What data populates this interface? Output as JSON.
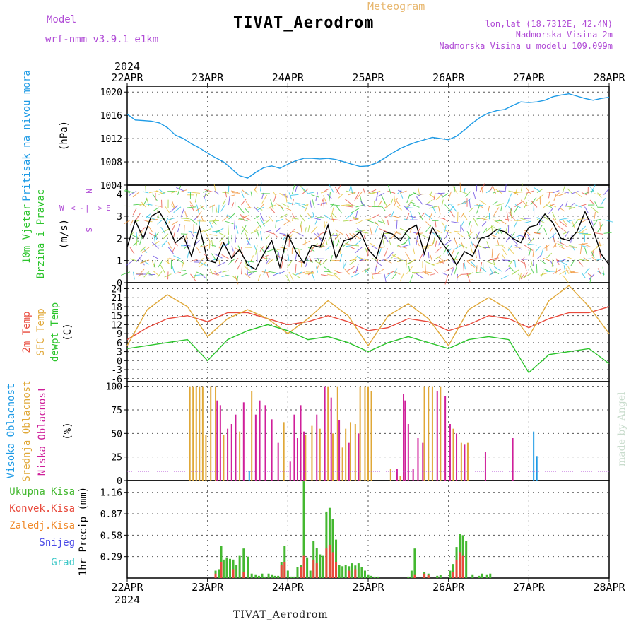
{
  "header": {
    "title": "TIVAT_Aerodrom",
    "subtitle": "Meteogram",
    "model_label": "Model",
    "model_version": "wrf-nmm_v3.9.1  e1km",
    "location_lines": [
      "lon,lat (18.7312E, 42.4N)",
      "Nadmorska Visina 2m",
      "Nadmorska Visina u modelu 109.099m"
    ]
  },
  "footer": {
    "station": "TIVAT_Aerodrom",
    "credit": "made by Angel"
  },
  "time_axis": {
    "year": "2024",
    "ticks": [
      "22APR",
      "23APR",
      "24APR",
      "25APR",
      "26APR",
      "27APR",
      "28APR"
    ]
  },
  "colors": {
    "pressure": "#1e9be6",
    "temp2m": "#e84a3c",
    "sfc_temp": "#e0a838",
    "dewpt": "#2bc42b",
    "cloud_high": "#1e9be6",
    "cloud_mid": "#e0a838",
    "cloud_low": "#cf1f9a",
    "precip_total": "#44b830",
    "precip_conv": "#e84a3c",
    "precip_frz": "#f08a2a",
    "snow": "#4a4ae6",
    "graupel": "#3ec8c8",
    "wind_label": "#2bc42b",
    "compass": "#b04bd6"
  },
  "chart_data": [
    {
      "type": "line",
      "panel": "pressure",
      "ylabel": [
        "Pritisak na nivou mora",
        "(hPa)"
      ],
      "yticks": [
        1004,
        1008,
        1012,
        1016,
        1020
      ],
      "ylim": [
        1004,
        1021
      ],
      "series": [
        {
          "name": "Pritisak na nivou mora",
          "color": "#1e9be6",
          "x": [
            0,
            0.1,
            0.2,
            0.3,
            0.4,
            0.5,
            0.6,
            0.7,
            0.8,
            0.9,
            1.0,
            1.1,
            1.2,
            1.3,
            1.4,
            1.5,
            1.6,
            1.7,
            1.8,
            1.9,
            2.0,
            2.1,
            2.2,
            2.3,
            2.4,
            2.5,
            2.6,
            2.7,
            2.8,
            2.9,
            3.0,
            3.1,
            3.2,
            3.3,
            3.4,
            3.5,
            3.6,
            3.7,
            3.8,
            3.9,
            4.0,
            4.1,
            4.2,
            4.3,
            4.4,
            4.5,
            4.6,
            4.7,
            4.8,
            4.9,
            5.0,
            5.1,
            5.2,
            5.3,
            5.4,
            5.5,
            5.6,
            5.7,
            5.8,
            5.9,
            6.0
          ],
          "y": [
            1016.2,
            1015.2,
            1015.1,
            1015.0,
            1014.7,
            1013.9,
            1012.6,
            1012.0,
            1011.1,
            1010.4,
            1009.5,
            1008.7,
            1008.0,
            1006.8,
            1005.6,
            1005.2,
            1006.2,
            1007.0,
            1007.3,
            1006.9,
            1007.6,
            1008.2,
            1008.6,
            1008.6,
            1008.5,
            1008.6,
            1008.4,
            1008.0,
            1007.6,
            1007.2,
            1007.3,
            1007.8,
            1008.6,
            1009.5,
            1010.3,
            1010.9,
            1011.4,
            1011.8,
            1012.2,
            1012.0,
            1011.8,
            1012.4,
            1013.5,
            1014.7,
            1015.7,
            1016.4,
            1016.8,
            1017.0,
            1017.7,
            1018.3,
            1018.2,
            1018.3,
            1018.6,
            1019.2,
            1019.5,
            1019.7,
            1019.3,
            1018.9,
            1018.6,
            1018.9,
            1019.1
          ]
        }
      ]
    },
    {
      "type": "line",
      "panel": "wind",
      "ylabel": [
        "10m Vjetar",
        "Brzina i Pravac",
        "(m/s)"
      ],
      "compass": [
        "N",
        "E",
        "S",
        "W",
        "<",
        ">",
        "|",
        "-"
      ],
      "yticks": [
        0,
        1,
        2,
        3,
        4
      ],
      "ylim": [
        0,
        4.4
      ],
      "series": [
        {
          "name": "10m Vjetar Brzina",
          "color": "#000000",
          "x": [
            0,
            0.1,
            0.2,
            0.3,
            0.4,
            0.5,
            0.6,
            0.7,
            0.8,
            0.9,
            1.0,
            1.1,
            1.2,
            1.3,
            1.4,
            1.5,
            1.6,
            1.7,
            1.8,
            1.9,
            2.0,
            2.1,
            2.2,
            2.3,
            2.4,
            2.5,
            2.6,
            2.7,
            2.8,
            2.9,
            3.0,
            3.1,
            3.2,
            3.3,
            3.4,
            3.5,
            3.6,
            3.7,
            3.8,
            3.9,
            4.0,
            4.1,
            4.2,
            4.3,
            4.4,
            4.5,
            4.6,
            4.7,
            4.8,
            4.9,
            5.0,
            5.1,
            5.2,
            5.3,
            5.4,
            5.5,
            5.6,
            5.7,
            5.8,
            5.9,
            6.0
          ],
          "y": [
            1.6,
            2.8,
            2.0,
            3.0,
            3.2,
            2.6,
            1.8,
            2.1,
            1.2,
            2.5,
            1.0,
            0.9,
            1.8,
            1.1,
            1.5,
            0.8,
            0.6,
            1.3,
            1.9,
            0.7,
            2.2,
            1.4,
            0.9,
            1.7,
            1.6,
            2.6,
            1.1,
            1.9,
            2.0,
            2.3,
            1.5,
            1.1,
            2.3,
            2.2,
            1.9,
            2.4,
            2.6,
            1.3,
            2.5,
            1.9,
            1.4,
            0.8,
            1.4,
            1.2,
            2.0,
            2.1,
            2.4,
            2.3,
            2.0,
            1.8,
            2.5,
            2.6,
            3.1,
            2.7,
            2.0,
            1.9,
            2.3,
            3.2,
            2.4,
            1.3,
            0.8
          ]
        }
      ]
    },
    {
      "type": "line",
      "panel": "temperature",
      "ylabel": [
        "2m Temp",
        "SFC Temp",
        "dewpt Temp",
        "(C)"
      ],
      "yticks": [
        -6,
        -3,
        0,
        3,
        6,
        9,
        12,
        15,
        18,
        21,
        24
      ],
      "ylim": [
        -7,
        26
      ],
      "series": [
        {
          "name": "2m Temp",
          "color": "#e84a3c",
          "x": [
            0,
            0.25,
            0.5,
            0.75,
            1.0,
            1.25,
            1.5,
            1.75,
            2.0,
            2.25,
            2.5,
            2.75,
            3.0,
            3.25,
            3.5,
            3.75,
            4.0,
            4.25,
            4.5,
            4.75,
            5.0,
            5.25,
            5.5,
            5.75,
            6.0
          ],
          "y": [
            7,
            11,
            14,
            15,
            13,
            16,
            16,
            14,
            12,
            13,
            15,
            13,
            10,
            11,
            14,
            13,
            10,
            12,
            15,
            14,
            11,
            14,
            16,
            16,
            18
          ]
        },
        {
          "name": "SFC Temp",
          "color": "#e0a838",
          "x": [
            0,
            0.25,
            0.5,
            0.75,
            1.0,
            1.25,
            1.5,
            1.75,
            2.0,
            2.25,
            2.5,
            2.75,
            3.0,
            3.25,
            3.5,
            3.75,
            4.0,
            4.25,
            4.5,
            4.75,
            5.0,
            5.25,
            5.5,
            5.75,
            6.0
          ],
          "y": [
            5,
            17,
            22,
            18,
            8,
            14,
            17,
            14,
            9,
            14,
            20,
            15,
            5,
            15,
            19,
            14,
            5,
            17,
            21,
            17,
            8,
            20,
            25,
            18,
            9
          ]
        },
        {
          "name": "dewpt Temp",
          "color": "#2bc42b",
          "x": [
            0,
            0.25,
            0.5,
            0.75,
            1.0,
            1.25,
            1.5,
            1.75,
            2.0,
            2.25,
            2.5,
            2.75,
            3.0,
            3.25,
            3.5,
            3.75,
            4.0,
            4.25,
            4.5,
            4.75,
            5.0,
            5.25,
            5.5,
            5.75,
            6.0
          ],
          "y": [
            4,
            5,
            6,
            7,
            0,
            7,
            10,
            12,
            10,
            7,
            8,
            6,
            3,
            6,
            8,
            6,
            4,
            7,
            8,
            7,
            -4,
            2,
            3,
            4,
            -1
          ]
        }
      ]
    },
    {
      "type": "bar",
      "panel": "cloud",
      "ylabel": [
        "Visoka Oblacnost",
        "Srednja Oblacnost",
        "Niska Oblacnost",
        "(%)"
      ],
      "yticks": [
        0,
        25,
        50,
        75,
        100
      ],
      "ylim": [
        0,
        105
      ],
      "series": [
        {
          "name": "Visoka Oblacnost",
          "color": "#1e9be6",
          "x": [
            1.52,
            5.06,
            5.1
          ],
          "y": [
            10,
            52,
            26
          ]
        },
        {
          "name": "Srednja Oblacnost",
          "color": "#e0a838",
          "x": [
            0.78,
            0.82,
            0.86,
            0.9,
            0.94,
            0.98,
            1.04,
            1.1,
            1.2,
            1.4,
            1.55,
            1.95,
            2.22,
            2.3,
            2.4,
            2.5,
            2.56,
            2.62,
            2.68,
            2.72,
            2.78,
            2.84,
            2.9,
            2.96,
            3.0,
            3.04,
            3.28,
            3.4,
            3.7,
            3.75,
            3.8,
            3.9,
            4.06,
            4.16,
            4.24
          ],
          "y": [
            100,
            100,
            100,
            100,
            100,
            48,
            100,
            100,
            48,
            52,
            95,
            62,
            48,
            58,
            55,
            100,
            50,
            100,
            35,
            55,
            62,
            60,
            100,
            100,
            100,
            95,
            12,
            5,
            100,
            100,
            100,
            100,
            55,
            40,
            40
          ]
        },
        {
          "name": "Niska Oblacnost",
          "color": "#cf1f9a",
          "x": [
            1.12,
            1.16,
            1.25,
            1.3,
            1.35,
            1.45,
            1.6,
            1.65,
            1.72,
            1.8,
            1.88,
            2.03,
            2.08,
            2.12,
            2.16,
            2.2,
            2.36,
            2.46,
            2.54,
            2.64,
            2.76,
            2.88,
            3.36,
            3.44,
            3.46,
            3.5,
            3.56,
            3.62,
            3.68,
            3.86,
            3.96,
            4.02,
            4.1,
            4.2,
            4.46,
            4.8
          ],
          "y": [
            85,
            80,
            55,
            60,
            70,
            83,
            70,
            85,
            80,
            65,
            40,
            20,
            70,
            45,
            80,
            52,
            70,
            100,
            88,
            64,
            40,
            50,
            12,
            92,
            85,
            60,
            12,
            45,
            40,
            95,
            90,
            60,
            50,
            38,
            30,
            45
          ]
        }
      ]
    },
    {
      "type": "bar",
      "panel": "precipitation",
      "ylabel": [
        "1hr Precip (mm)"
      ],
      "legend": [
        "Ukupna Kisa",
        "Konvek.Kisa",
        "Zaledj.Kisa",
        "Snijeg",
        "Grad"
      ],
      "yticks": [
        0.29,
        0.58,
        0.87,
        1.16
      ],
      "ylim": [
        0,
        1.32
      ],
      "series": [
        {
          "name": "Ukupna Kisa",
          "color": "#44b830",
          "x": [
            1.1,
            1.14,
            1.17,
            1.2,
            1.24,
            1.28,
            1.32,
            1.36,
            1.4,
            1.45,
            1.5,
            1.55,
            1.6,
            1.64,
            1.68,
            1.72,
            1.76,
            1.8,
            1.84,
            1.88,
            1.92,
            1.96,
            2.0,
            2.04,
            2.08,
            2.12,
            2.16,
            2.2,
            2.24,
            2.28,
            2.32,
            2.36,
            2.4,
            2.44,
            2.48,
            2.52,
            2.56,
            2.6,
            2.64,
            2.68,
            2.72,
            2.76,
            2.8,
            2.84,
            2.88,
            2.92,
            2.96,
            3.0,
            3.04,
            3.08,
            3.12,
            3.5,
            3.54,
            3.58,
            3.7,
            3.75,
            3.86,
            3.9,
            4.02,
            4.06,
            4.1,
            4.14,
            4.18,
            4.22,
            4.3,
            4.38,
            4.42,
            4.48,
            4.52
          ],
          "y": [
            0.1,
            0.12,
            0.44,
            0.25,
            0.28,
            0.26,
            0.25,
            0.18,
            0.3,
            0.4,
            0.29,
            0.06,
            0.05,
            0.03,
            0.06,
            0.02,
            0.06,
            0.05,
            0.03,
            0.03,
            0.22,
            0.44,
            0.1,
            0.02,
            0.02,
            0.15,
            0.18,
            1.31,
            0.28,
            0.1,
            0.5,
            0.41,
            0.32,
            0.3,
            0.9,
            0.95,
            0.8,
            0.52,
            0.18,
            0.16,
            0.18,
            0.16,
            0.2,
            0.17,
            0.2,
            0.15,
            0.1,
            0.05,
            0.03,
            0.02,
            0.02,
            0.02,
            0.1,
            0.4,
            0.08,
            0.06,
            0.03,
            0.04,
            0.1,
            0.19,
            0.42,
            0.6,
            0.58,
            0.5,
            0.05,
            0.03,
            0.06,
            0.05,
            0.06
          ]
        },
        {
          "name": "Konvek.Kisa",
          "color": "#e84a3c",
          "x": [
            1.1,
            1.17,
            1.32,
            1.45,
            1.92,
            1.96,
            2.16,
            2.2,
            2.32,
            2.36,
            2.48,
            2.52,
            2.56,
            2.6,
            2.76,
            2.84,
            3.58,
            3.7,
            3.75,
            4.06,
            4.1,
            4.14,
            4.18
          ],
          "y": [
            0.06,
            0.22,
            0.12,
            0.08,
            0.18,
            0.22,
            0.15,
            0.3,
            0.25,
            0.2,
            0.4,
            0.45,
            0.35,
            0.22,
            0.1,
            0.12,
            0.05,
            0.06,
            0.04,
            0.08,
            0.25,
            0.35,
            0.3
          ]
        }
      ]
    }
  ]
}
